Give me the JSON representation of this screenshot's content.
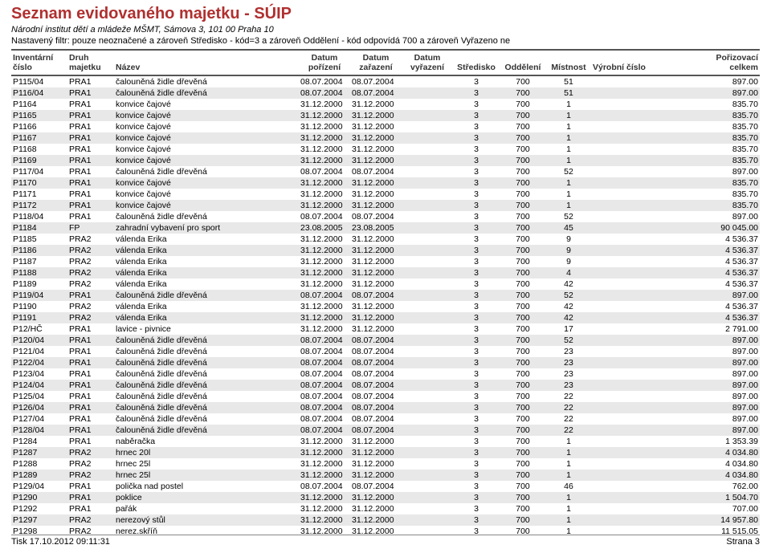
{
  "title": "Seznam evidovaného majetku - SÚIP",
  "subtitle": "Národní institut dětí a mládeže MŠMT, Sámova 3, 101 00 Praha 10",
  "filter": "Nastavený filtr: pouze neoznačené a zároveň Středisko - kód=3 a zároveň Oddělení - kód odpovídá 700 a zároveň Vyřazeno ne",
  "header": {
    "inv_l1": "Inventární",
    "inv_l2": "číslo",
    "druh_l1": "Druh",
    "druh_l2": "majetku",
    "nazev": "Název",
    "dporizeni_l1": "Datum",
    "dporizeni_l2": "pořízení",
    "dzarazeni_l1": "Datum",
    "dzarazeni_l2": "zařazení",
    "dvyrazeni_l1": "Datum",
    "dvyrazeni_l2": "vyřazení",
    "stredisko": "Středisko",
    "oddeleni": "Oddělení",
    "mistnost": "Místnost",
    "vyrobni": "Výrobní číslo",
    "poriz_l1": "Pořizovací",
    "poriz_l2": "celkem"
  },
  "rows": [
    {
      "inv": "P115/04",
      "druh": "PRA1",
      "nazev": "čalouněná židle dřevěná",
      "dpor": "08.07.2004",
      "dzar": "08.07.2004",
      "dvyr": "",
      "str": "3",
      "odd": "700",
      "mis": "51",
      "vc": "",
      "cena": "897.00"
    },
    {
      "inv": "P116/04",
      "druh": "PRA1",
      "nazev": "čalouněná židle dřevěná",
      "dpor": "08.07.2004",
      "dzar": "08.07.2004",
      "dvyr": "",
      "str": "3",
      "odd": "700",
      "mis": "51",
      "vc": "",
      "cena": "897.00"
    },
    {
      "inv": "P1164",
      "druh": "PRA1",
      "nazev": "konvice čajové",
      "dpor": "31.12.2000",
      "dzar": "31.12.2000",
      "dvyr": "",
      "str": "3",
      "odd": "700",
      "mis": "1",
      "vc": "",
      "cena": "835.70"
    },
    {
      "inv": "P1165",
      "druh": "PRA1",
      "nazev": "konvice čajové",
      "dpor": "31.12.2000",
      "dzar": "31.12.2000",
      "dvyr": "",
      "str": "3",
      "odd": "700",
      "mis": "1",
      "vc": "",
      "cena": "835.70"
    },
    {
      "inv": "P1166",
      "druh": "PRA1",
      "nazev": "konvice čajové",
      "dpor": "31.12.2000",
      "dzar": "31.12.2000",
      "dvyr": "",
      "str": "3",
      "odd": "700",
      "mis": "1",
      "vc": "",
      "cena": "835.70"
    },
    {
      "inv": "P1167",
      "druh": "PRA1",
      "nazev": "konvice čajové",
      "dpor": "31.12.2000",
      "dzar": "31.12.2000",
      "dvyr": "",
      "str": "3",
      "odd": "700",
      "mis": "1",
      "vc": "",
      "cena": "835.70"
    },
    {
      "inv": "P1168",
      "druh": "PRA1",
      "nazev": "konvice čajové",
      "dpor": "31.12.2000",
      "dzar": "31.12.2000",
      "dvyr": "",
      "str": "3",
      "odd": "700",
      "mis": "1",
      "vc": "",
      "cena": "835.70"
    },
    {
      "inv": "P1169",
      "druh": "PRA1",
      "nazev": "konvice čajové",
      "dpor": "31.12.2000",
      "dzar": "31.12.2000",
      "dvyr": "",
      "str": "3",
      "odd": "700",
      "mis": "1",
      "vc": "",
      "cena": "835.70"
    },
    {
      "inv": "P117/04",
      "druh": "PRA1",
      "nazev": "čalouněná židle dřevěná",
      "dpor": "08.07.2004",
      "dzar": "08.07.2004",
      "dvyr": "",
      "str": "3",
      "odd": "700",
      "mis": "52",
      "vc": "",
      "cena": "897.00"
    },
    {
      "inv": "P1170",
      "druh": "PRA1",
      "nazev": "konvice čajové",
      "dpor": "31.12.2000",
      "dzar": "31.12.2000",
      "dvyr": "",
      "str": "3",
      "odd": "700",
      "mis": "1",
      "vc": "",
      "cena": "835.70"
    },
    {
      "inv": "P1171",
      "druh": "PRA1",
      "nazev": "konvice čajové",
      "dpor": "31.12.2000",
      "dzar": "31.12.2000",
      "dvyr": "",
      "str": "3",
      "odd": "700",
      "mis": "1",
      "vc": "",
      "cena": "835.70"
    },
    {
      "inv": "P1172",
      "druh": "PRA1",
      "nazev": "konvice čajové",
      "dpor": "31.12.2000",
      "dzar": "31.12.2000",
      "dvyr": "",
      "str": "3",
      "odd": "700",
      "mis": "1",
      "vc": "",
      "cena": "835.70"
    },
    {
      "inv": "P118/04",
      "druh": "PRA1",
      "nazev": "čalouněná židle dřevěná",
      "dpor": "08.07.2004",
      "dzar": "08.07.2004",
      "dvyr": "",
      "str": "3",
      "odd": "700",
      "mis": "52",
      "vc": "",
      "cena": "897.00"
    },
    {
      "inv": "P1184",
      "druh": "FP",
      "nazev": "zahradní vybavení pro sport",
      "dpor": "23.08.2005",
      "dzar": "23.08.2005",
      "dvyr": "",
      "str": "3",
      "odd": "700",
      "mis": "45",
      "vc": "",
      "cena": "90 045.00"
    },
    {
      "inv": "P1185",
      "druh": "PRA2",
      "nazev": "válenda Erika",
      "dpor": "31.12.2000",
      "dzar": "31.12.2000",
      "dvyr": "",
      "str": "3",
      "odd": "700",
      "mis": "9",
      "vc": "",
      "cena": "4 536.37"
    },
    {
      "inv": "P1186",
      "druh": "PRA2",
      "nazev": "válenda Erika",
      "dpor": "31.12.2000",
      "dzar": "31.12.2000",
      "dvyr": "",
      "str": "3",
      "odd": "700",
      "mis": "9",
      "vc": "",
      "cena": "4 536.37"
    },
    {
      "inv": "P1187",
      "druh": "PRA2",
      "nazev": "válenda Erika",
      "dpor": "31.12.2000",
      "dzar": "31.12.2000",
      "dvyr": "",
      "str": "3",
      "odd": "700",
      "mis": "9",
      "vc": "",
      "cena": "4 536.37"
    },
    {
      "inv": "P1188",
      "druh": "PRA2",
      "nazev": "válenda Erika",
      "dpor": "31.12.2000",
      "dzar": "31.12.2000",
      "dvyr": "",
      "str": "3",
      "odd": "700",
      "mis": "4",
      "vc": "",
      "cena": "4 536.37"
    },
    {
      "inv": "P1189",
      "druh": "PRA2",
      "nazev": "válenda Erika",
      "dpor": "31.12.2000",
      "dzar": "31.12.2000",
      "dvyr": "",
      "str": "3",
      "odd": "700",
      "mis": "42",
      "vc": "",
      "cena": "4 536.37"
    },
    {
      "inv": "P119/04",
      "druh": "PRA1",
      "nazev": "čalouněná židle dřevěná",
      "dpor": "08.07.2004",
      "dzar": "08.07.2004",
      "dvyr": "",
      "str": "3",
      "odd": "700",
      "mis": "52",
      "vc": "",
      "cena": "897.00"
    },
    {
      "inv": "P1190",
      "druh": "PRA2",
      "nazev": "válenda Erika",
      "dpor": "31.12.2000",
      "dzar": "31.12.2000",
      "dvyr": "",
      "str": "3",
      "odd": "700",
      "mis": "42",
      "vc": "",
      "cena": "4 536.37"
    },
    {
      "inv": "P1191",
      "druh": "PRA2",
      "nazev": "válenda Erika",
      "dpor": "31.12.2000",
      "dzar": "31.12.2000",
      "dvyr": "",
      "str": "3",
      "odd": "700",
      "mis": "42",
      "vc": "",
      "cena": "4 536.37"
    },
    {
      "inv": "P12/HČ",
      "druh": "PRA1",
      "nazev": "lavice - pivnice",
      "dpor": "31.12.2000",
      "dzar": "31.12.2000",
      "dvyr": "",
      "str": "3",
      "odd": "700",
      "mis": "17",
      "vc": "",
      "cena": "2 791.00"
    },
    {
      "inv": "P120/04",
      "druh": "PRA1",
      "nazev": "čalouněná židle dřevěná",
      "dpor": "08.07.2004",
      "dzar": "08.07.2004",
      "dvyr": "",
      "str": "3",
      "odd": "700",
      "mis": "52",
      "vc": "",
      "cena": "897.00"
    },
    {
      "inv": "P121/04",
      "druh": "PRA1",
      "nazev": "čalouněná židle dřevěná",
      "dpor": "08.07.2004",
      "dzar": "08.07.2004",
      "dvyr": "",
      "str": "3",
      "odd": "700",
      "mis": "23",
      "vc": "",
      "cena": "897.00"
    },
    {
      "inv": "P122/04",
      "druh": "PRA1",
      "nazev": "čalouněná židle dřevěná",
      "dpor": "08.07.2004",
      "dzar": "08.07.2004",
      "dvyr": "",
      "str": "3",
      "odd": "700",
      "mis": "23",
      "vc": "",
      "cena": "897.00"
    },
    {
      "inv": "P123/04",
      "druh": "PRA1",
      "nazev": "čalouněná židle dřevěná",
      "dpor": "08.07.2004",
      "dzar": "08.07.2004",
      "dvyr": "",
      "str": "3",
      "odd": "700",
      "mis": "23",
      "vc": "",
      "cena": "897.00"
    },
    {
      "inv": "P124/04",
      "druh": "PRA1",
      "nazev": "čalouněná židle dřevěná",
      "dpor": "08.07.2004",
      "dzar": "08.07.2004",
      "dvyr": "",
      "str": "3",
      "odd": "700",
      "mis": "23",
      "vc": "",
      "cena": "897.00"
    },
    {
      "inv": "P125/04",
      "druh": "PRA1",
      "nazev": "čalouněná židle dřevěná",
      "dpor": "08.07.2004",
      "dzar": "08.07.2004",
      "dvyr": "",
      "str": "3",
      "odd": "700",
      "mis": "22",
      "vc": "",
      "cena": "897.00"
    },
    {
      "inv": "P126/04",
      "druh": "PRA1",
      "nazev": "čalouněná židle dřevěná",
      "dpor": "08.07.2004",
      "dzar": "08.07.2004",
      "dvyr": "",
      "str": "3",
      "odd": "700",
      "mis": "22",
      "vc": "",
      "cena": "897.00"
    },
    {
      "inv": "P127/04",
      "druh": "PRA1",
      "nazev": "čalouněná židle dřevěná",
      "dpor": "08.07.2004",
      "dzar": "08.07.2004",
      "dvyr": "",
      "str": "3",
      "odd": "700",
      "mis": "22",
      "vc": "",
      "cena": "897.00"
    },
    {
      "inv": "P128/04",
      "druh": "PRA1",
      "nazev": "čalouněná židle dřevěná",
      "dpor": "08.07.2004",
      "dzar": "08.07.2004",
      "dvyr": "",
      "str": "3",
      "odd": "700",
      "mis": "22",
      "vc": "",
      "cena": "897.00"
    },
    {
      "inv": "P1284",
      "druh": "PRA1",
      "nazev": "naběračka",
      "dpor": "31.12.2000",
      "dzar": "31.12.2000",
      "dvyr": "",
      "str": "3",
      "odd": "700",
      "mis": "1",
      "vc": "",
      "cena": "1 353.39"
    },
    {
      "inv": "P1287",
      "druh": "PRA2",
      "nazev": "hrnec 20l",
      "dpor": "31.12.2000",
      "dzar": "31.12.2000",
      "dvyr": "",
      "str": "3",
      "odd": "700",
      "mis": "1",
      "vc": "",
      "cena": "4 034.80"
    },
    {
      "inv": "P1288",
      "druh": "PRA2",
      "nazev": "hrnec 25l",
      "dpor": "31.12.2000",
      "dzar": "31.12.2000",
      "dvyr": "",
      "str": "3",
      "odd": "700",
      "mis": "1",
      "vc": "",
      "cena": "4 034.80"
    },
    {
      "inv": "P1289",
      "druh": "PRA2",
      "nazev": "hrnec 25l",
      "dpor": "31.12.2000",
      "dzar": "31.12.2000",
      "dvyr": "",
      "str": "3",
      "odd": "700",
      "mis": "1",
      "vc": "",
      "cena": "4 034.80"
    },
    {
      "inv": "P129/04",
      "druh": "PRA1",
      "nazev": "polička nad postel",
      "dpor": "08.07.2004",
      "dzar": "08.07.2004",
      "dvyr": "",
      "str": "3",
      "odd": "700",
      "mis": "46",
      "vc": "",
      "cena": "762.00"
    },
    {
      "inv": "P1290",
      "druh": "PRA1",
      "nazev": "poklice",
      "dpor": "31.12.2000",
      "dzar": "31.12.2000",
      "dvyr": "",
      "str": "3",
      "odd": "700",
      "mis": "1",
      "vc": "",
      "cena": "1 504.70"
    },
    {
      "inv": "P1292",
      "druh": "PRA1",
      "nazev": "pařák",
      "dpor": "31.12.2000",
      "dzar": "31.12.2000",
      "dvyr": "",
      "str": "3",
      "odd": "700",
      "mis": "1",
      "vc": "",
      "cena": "707.00"
    },
    {
      "inv": "P1297",
      "druh": "PRA2",
      "nazev": "nerezový stůl",
      "dpor": "31.12.2000",
      "dzar": "31.12.2000",
      "dvyr": "",
      "str": "3",
      "odd": "700",
      "mis": "1",
      "vc": "",
      "cena": "14 957.80"
    },
    {
      "inv": "P1298",
      "druh": "PRA2",
      "nazev": "nerez.skříň",
      "dpor": "31.12.2000",
      "dzar": "31.12.2000",
      "dvyr": "",
      "str": "3",
      "odd": "700",
      "mis": "1",
      "vc": "",
      "cena": "11 515.05"
    }
  ],
  "footer": {
    "left": "Tisk 17.10.2012 09:11:31",
    "right": "Strana 3"
  },
  "style": {
    "title_color": "#b03030",
    "row_alt_bg": "#e8e8e8",
    "border_color": "#555555"
  }
}
